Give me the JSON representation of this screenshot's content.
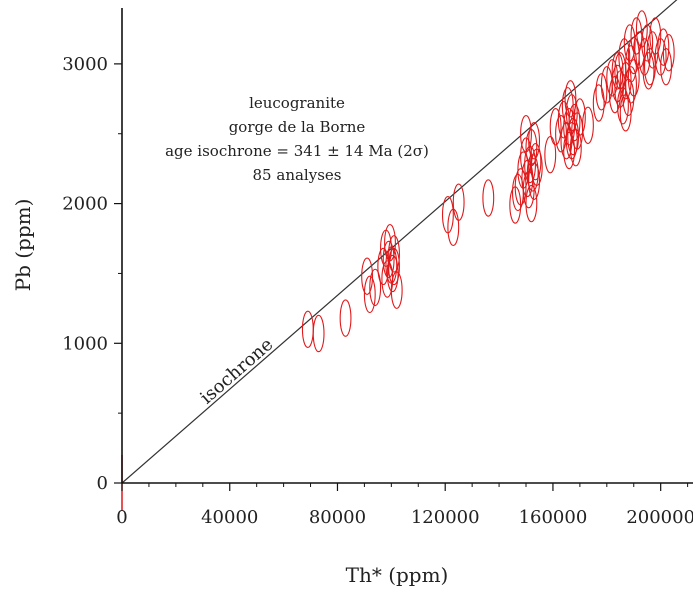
{
  "chart_data": {
    "type": "scatter",
    "xlabel": "Th* (ppm)",
    "ylabel": "Pb (ppm)",
    "xlim": [
      0,
      212000
    ],
    "ylim": [
      0,
      3400
    ],
    "x_ticks": [
      0,
      40000,
      80000,
      120000,
      160000,
      200000
    ],
    "x_tick_labels": [
      "0",
      "40000",
      "80000",
      "120000",
      "160000",
      "200000"
    ],
    "y_ticks": [
      0,
      1000,
      2000,
      3000
    ],
    "y_tick_labels": [
      "0",
      "1000",
      "2000",
      "3000"
    ],
    "x_minor_ticks": [
      10000,
      20000,
      30000,
      50000,
      60000,
      70000,
      90000,
      100000,
      110000,
      130000,
      140000,
      150000,
      170000,
      180000,
      190000,
      210000
    ],
    "y_minor_ticks": [
      500,
      1500,
      2500
    ],
    "grid": false,
    "annotation": [
      "leucogranite",
      "gorge de la Borne",
      "age isochrone = 341 ± 14 Ma (2σ)",
      "85 analyses"
    ],
    "isochrone_label": "isochrone",
    "isochrone": {
      "x": [
        0,
        212000
      ],
      "y": [
        0,
        3560
      ]
    },
    "marker_color": "#e0191b",
    "line_color": "#333333",
    "ellipse_radius": {
      "x": 2000,
      "y": 130
    },
    "points": [
      {
        "x": 69000,
        "y": 1100
      },
      {
        "x": 73000,
        "y": 1070
      },
      {
        "x": 83000,
        "y": 1180
      },
      {
        "x": 91000,
        "y": 1480
      },
      {
        "x": 92000,
        "y": 1350
      },
      {
        "x": 94000,
        "y": 1400
      },
      {
        "x": 97000,
        "y": 1550
      },
      {
        "x": 98000,
        "y": 1680
      },
      {
        "x": 99000,
        "y": 1600
      },
      {
        "x": 99500,
        "y": 1720
      },
      {
        "x": 100000,
        "y": 1560
      },
      {
        "x": 100500,
        "y": 1500
      },
      {
        "x": 101000,
        "y": 1640
      },
      {
        "x": 102000,
        "y": 1380
      },
      {
        "x": 121000,
        "y": 1920
      },
      {
        "x": 123000,
        "y": 1830
      },
      {
        "x": 125000,
        "y": 2010
      },
      {
        "x": 136000,
        "y": 2040
      },
      {
        "x": 146000,
        "y": 1990
      },
      {
        "x": 147000,
        "y": 2080
      },
      {
        "x": 149000,
        "y": 2240
      },
      {
        "x": 150000,
        "y": 2340
      },
      {
        "x": 150500,
        "y": 2180
      },
      {
        "x": 151000,
        "y": 2100
      },
      {
        "x": 151500,
        "y": 2280
      },
      {
        "x": 152000,
        "y": 2400
      },
      {
        "x": 152500,
        "y": 2220
      },
      {
        "x": 153000,
        "y": 2160
      },
      {
        "x": 153500,
        "y": 2300
      },
      {
        "x": 154000,
        "y": 2260
      },
      {
        "x": 152000,
        "y": 2000
      },
      {
        "x": 159000,
        "y": 2350
      },
      {
        "x": 163000,
        "y": 2500
      },
      {
        "x": 164000,
        "y": 2600
      },
      {
        "x": 165000,
        "y": 2450
      },
      {
        "x": 165500,
        "y": 2700
      },
      {
        "x": 166000,
        "y": 2550
      },
      {
        "x": 167000,
        "y": 2650
      },
      {
        "x": 167500,
        "y": 2480
      },
      {
        "x": 168000,
        "y": 2580
      },
      {
        "x": 168500,
        "y": 2400
      },
      {
        "x": 169000,
        "y": 2520
      },
      {
        "x": 170000,
        "y": 2620
      },
      {
        "x": 166000,
        "y": 2380
      },
      {
        "x": 173000,
        "y": 2560
      },
      {
        "x": 177000,
        "y": 2720
      },
      {
        "x": 180000,
        "y": 2850
      },
      {
        "x": 182000,
        "y": 2900
      },
      {
        "x": 183000,
        "y": 2780
      },
      {
        "x": 184000,
        "y": 2950
      },
      {
        "x": 185000,
        "y": 2820
      },
      {
        "x": 186000,
        "y": 2700
      },
      {
        "x": 186500,
        "y": 3050
      },
      {
        "x": 187000,
        "y": 2880
      },
      {
        "x": 188000,
        "y": 2760
      },
      {
        "x": 188500,
        "y": 3150
      },
      {
        "x": 189000,
        "y": 3000
      },
      {
        "x": 190000,
        "y": 2900
      },
      {
        "x": 191000,
        "y": 3200
      },
      {
        "x": 192000,
        "y": 3100
      },
      {
        "x": 193000,
        "y": 3250
      },
      {
        "x": 194000,
        "y": 3050
      },
      {
        "x": 195000,
        "y": 3150
      },
      {
        "x": 196000,
        "y": 2980
      },
      {
        "x": 197000,
        "y": 3100
      },
      {
        "x": 198000,
        "y": 3200
      },
      {
        "x": 200000,
        "y": 3050
      },
      {
        "x": 201000,
        "y": 3120
      },
      {
        "x": 202000,
        "y": 2980
      },
      {
        "x": 203000,
        "y": 3080
      },
      {
        "x": 185000,
        "y": 2950
      },
      {
        "x": 184000,
        "y": 2860
      },
      {
        "x": 187000,
        "y": 2650
      },
      {
        "x": 189000,
        "y": 2850
      },
      {
        "x": 195500,
        "y": 2950
      },
      {
        "x": 161000,
        "y": 2550
      },
      {
        "x": 167000,
        "y": 2450
      },
      {
        "x": 166500,
        "y": 2750
      },
      {
        "x": 150000,
        "y": 2500
      },
      {
        "x": 153000,
        "y": 2450
      },
      {
        "x": 148000,
        "y": 2120
      },
      {
        "x": 101000,
        "y": 1550
      },
      {
        "x": 98500,
        "y": 1460
      },
      {
        "x": 190000,
        "y": 3060
      },
      {
        "x": 178000,
        "y": 2800
      }
    ]
  }
}
